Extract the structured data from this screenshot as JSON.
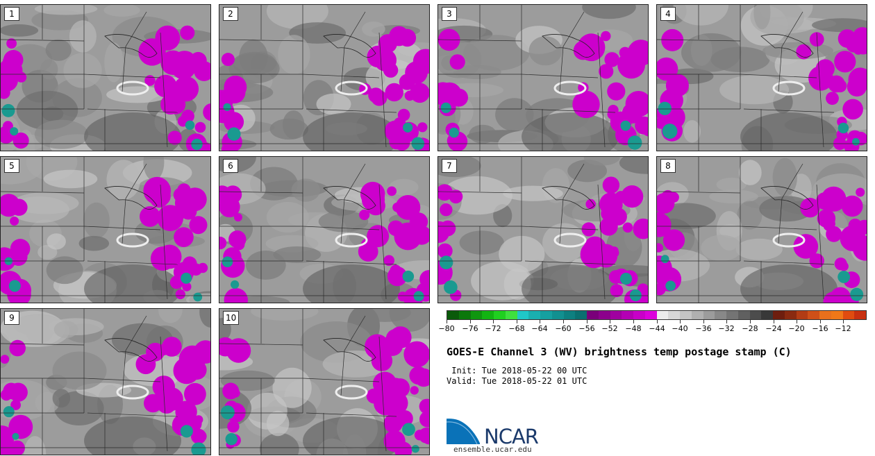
{
  "panels": [
    {
      "label": "1"
    },
    {
      "label": "2"
    },
    {
      "label": "3"
    },
    {
      "label": "4"
    },
    {
      "label": "5"
    },
    {
      "label": "6"
    },
    {
      "label": "7"
    },
    {
      "label": "8"
    },
    {
      "label": "9"
    },
    {
      "label": "10"
    }
  ],
  "colorbar": {
    "colors": [
      "#0a5a0a",
      "#0c780c",
      "#0f960f",
      "#12b412",
      "#20d020",
      "#3fe03f",
      "#20c8c8",
      "#1ab0b0",
      "#15a0a0",
      "#119090",
      "#0d8080",
      "#0a7070",
      "#7a007a",
      "#8c008c",
      "#a000a0",
      "#b400b4",
      "#c800c8",
      "#dc00dc",
      "#ececec",
      "#d8d8d8",
      "#c4c4c4",
      "#b0b0b0",
      "#9c9c9c",
      "#888888",
      "#747474",
      "#606060",
      "#4c4c4c",
      "#383838",
      "#6e1e0e",
      "#8a2a10",
      "#b23c14",
      "#d05018",
      "#e8701c",
      "#f07818",
      "#e04c10",
      "#c83010"
    ],
    "tick_labels": [
      "−80",
      "−76",
      "−72",
      "−68",
      "−64",
      "−60",
      "−56",
      "−52",
      "−48",
      "−44",
      "−40",
      "−36",
      "−32",
      "−28",
      "−24",
      "−20",
      "−16",
      "−12"
    ],
    "range": [
      -80,
      -10
    ]
  },
  "title": "GOES-E Channel 3 (WV) brightness temp postage stamp (C)",
  "init": " Init: Tue 2018-05-22 00 UTC",
  "valid": "Valid: Tue 2018-05-22 01 UTC",
  "logo": {
    "text": "NCAR",
    "site": "ensemble.ucar.edu",
    "brand_color": "#1b3a6b",
    "accent_color": "#0a72b8"
  },
  "legend": {
    "gray": "#9a9a9a",
    "magenta": "#cc00cc",
    "teal": "#1a9a90"
  }
}
